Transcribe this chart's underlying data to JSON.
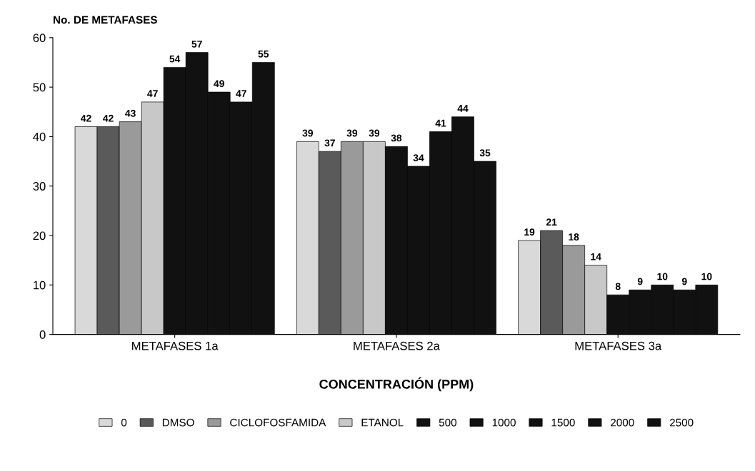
{
  "chart_data": {
    "type": "bar",
    "ylabel": "No. DE METAFASES",
    "xlabel": "CONCENTRACIÓN (PPM)",
    "categories": [
      "METAFASES 1a",
      "METAFASES 2a",
      "METAFASES 3a"
    ],
    "series": [
      {
        "name": "0",
        "color": "#d9d9d9",
        "values": [
          42,
          39,
          19
        ]
      },
      {
        "name": "DMSO",
        "color": "#5a5a5a",
        "values": [
          42,
          37,
          21
        ]
      },
      {
        "name": "CICLOFOSFAMIDA",
        "color": "#9a9a9a",
        "values": [
          43,
          39,
          18
        ]
      },
      {
        "name": "ETANOL",
        "color": "#c8c8c8",
        "values": [
          47,
          39,
          14
        ]
      },
      {
        "name": "500",
        "color": "#111111",
        "values": [
          54,
          38,
          8
        ]
      },
      {
        "name": "1000",
        "color": "#111111",
        "values": [
          57,
          34,
          9
        ]
      },
      {
        "name": "1500",
        "color": "#111111",
        "values": [
          49,
          41,
          10
        ]
      },
      {
        "name": "2000",
        "color": "#111111",
        "values": [
          47,
          44,
          9
        ]
      },
      {
        "name": "2500",
        "color": "#111111",
        "values": [
          55,
          35,
          10
        ]
      }
    ],
    "ylim": [
      0,
      60
    ],
    "yticks": [
      0,
      10,
      20,
      30,
      40,
      50,
      60
    ],
    "data_labels": true,
    "grid": false,
    "legend": "bottom"
  }
}
